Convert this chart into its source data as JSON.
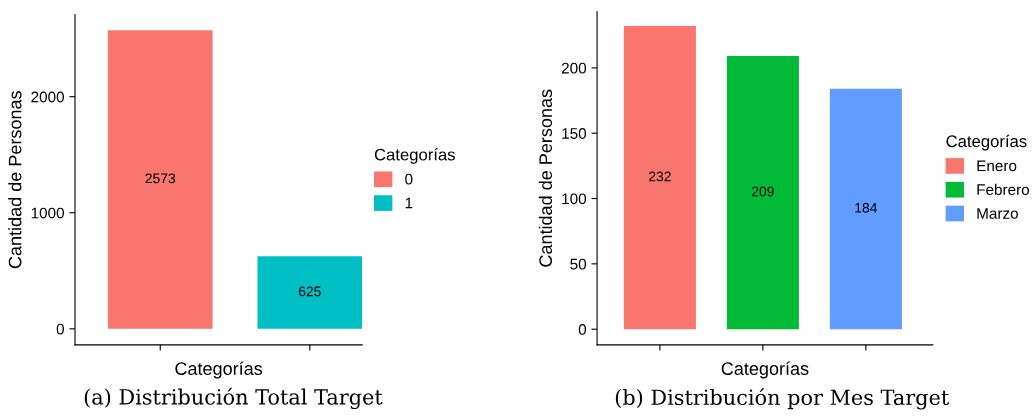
{
  "chart_data": [
    {
      "type": "bar",
      "xlabel": "Categorías",
      "ylabel": "Cantidad de Personas",
      "legend_title": "Categorías",
      "categories": [
        null,
        null
      ],
      "series": [
        {
          "name": "0",
          "color": "#f8766d",
          "values": [
            2573,
            null
          ]
        },
        {
          "name": "1",
          "color": "#00bfc4",
          "values": [
            null,
            625
          ]
        }
      ],
      "ylim": [
        -138,
        2707
      ],
      "yticks": [
        0,
        1000,
        2000
      ],
      "data_labels": true,
      "legend": "right",
      "grid": false,
      "tick_labels": "y",
      "annotations": [
        "(a) Distribución Total Target"
      ]
    },
    {
      "type": "bar",
      "xlabel": "Categorías",
      "ylabel": "Cantidad de Personas",
      "legend_title": "Categorías",
      "categories": [
        null,
        null,
        null
      ],
      "series": [
        {
          "name": "Enero",
          "color": "#f8766d",
          "values": [
            232,
            null,
            null
          ]
        },
        {
          "name": "Febrero",
          "color": "#00ba38",
          "values": [
            null,
            209,
            null
          ]
        },
        {
          "name": "Marzo",
          "color": "#619cff",
          "values": [
            null,
            null,
            184
          ]
        }
      ],
      "ylim": [
        -12,
        243
      ],
      "yticks": [
        0,
        50,
        100,
        150,
        200
      ],
      "data_labels": true,
      "legend": "right",
      "grid": false,
      "tick_labels": "y",
      "annotations": [
        "(b) Distribución por Mes Target"
      ]
    }
  ]
}
